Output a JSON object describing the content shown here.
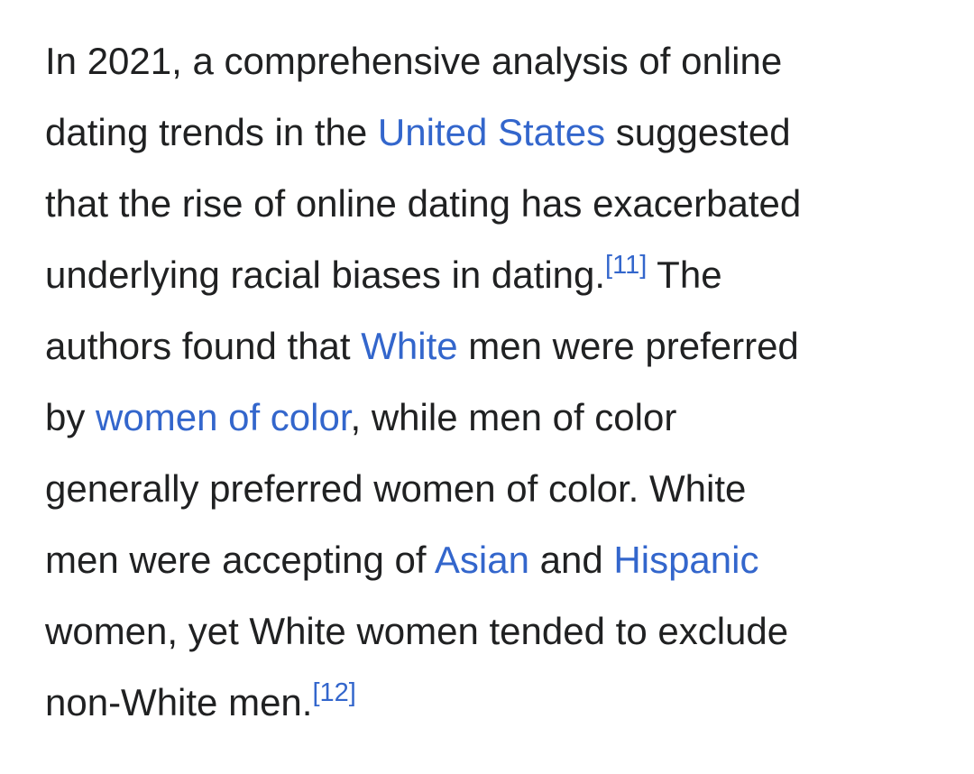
{
  "paragraph": {
    "l1": "In 2021, a comprehensive analysis of online",
    "l2a": "dating trends in the ",
    "link_united_states": "United States",
    "l2b": " suggested",
    "l3": "that the rise of online dating has exacerbated",
    "l4a": "underlying racial biases in dating.",
    "ref11": "[11]",
    "l4b": " The",
    "l5a": "authors found that ",
    "link_white": "White",
    "l5b": " men were preferred",
    "l6a": "by ",
    "link_women_of_color": "women of color",
    "l6b": ", while men of color",
    "l7": "generally preferred women of color. White",
    "l8a": "men were accepting of ",
    "link_asian": "Asian",
    "l8b": " and ",
    "link_hispanic": "Hispanic",
    "l9": "women, yet White women tended to exclude",
    "l10a": "non-White men.",
    "ref12": "[12]"
  },
  "colors": {
    "text": "#202122",
    "link": "#3366cc",
    "background": "#ffffff"
  }
}
